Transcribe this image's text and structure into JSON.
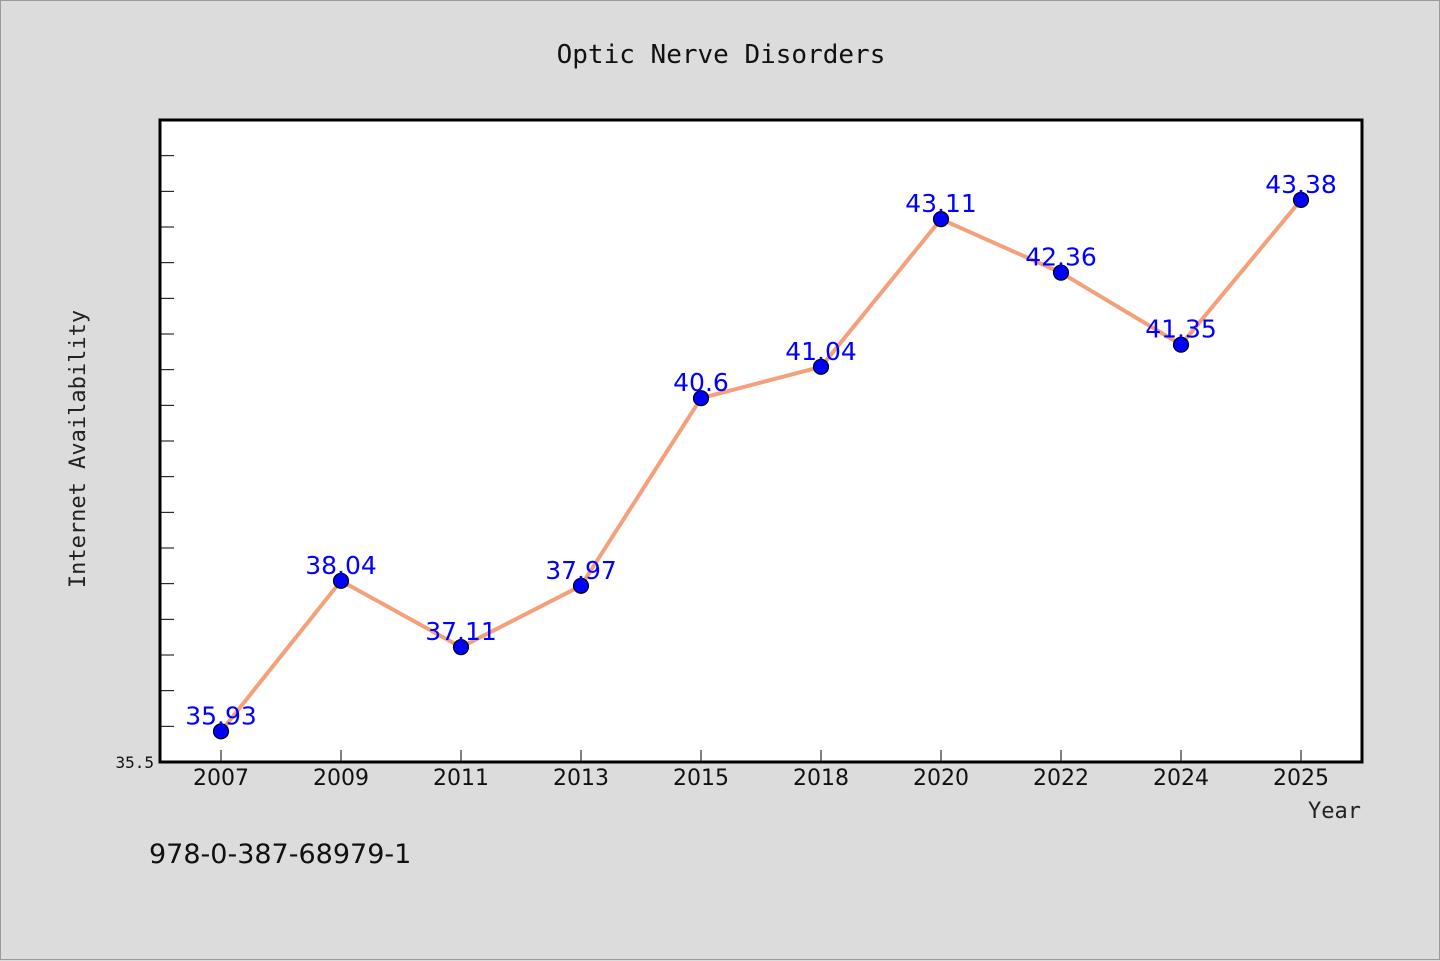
{
  "chart_data": {
    "type": "line",
    "title": "Optic Nerve Disorders",
    "xlabel": "Year",
    "ylabel": "Internet Availability",
    "categories": [
      "2007",
      "2009",
      "2011",
      "2013",
      "2015",
      "2018",
      "2020",
      "2022",
      "2024",
      "2025"
    ],
    "series": [
      {
        "values": [
          35.93,
          38.04,
          37.11,
          37.97,
          40.6,
          41.04,
          43.11,
          42.36,
          41.35,
          43.38
        ],
        "line_color": "#f4a07a",
        "marker_color": "#0000ff"
      }
    ],
    "data_labels": [
      "35.93",
      "38.04",
      "37.11",
      "37.97",
      "40.6",
      "41.04",
      "43.11",
      "42.36",
      "41.35",
      "43.38"
    ],
    "y_tick_labels": [
      "35.5"
    ],
    "ylim": [
      35.5,
      44.5
    ],
    "grid": false,
    "legend": "none"
  },
  "footer": {
    "code": "978-0-387-68979-1"
  }
}
